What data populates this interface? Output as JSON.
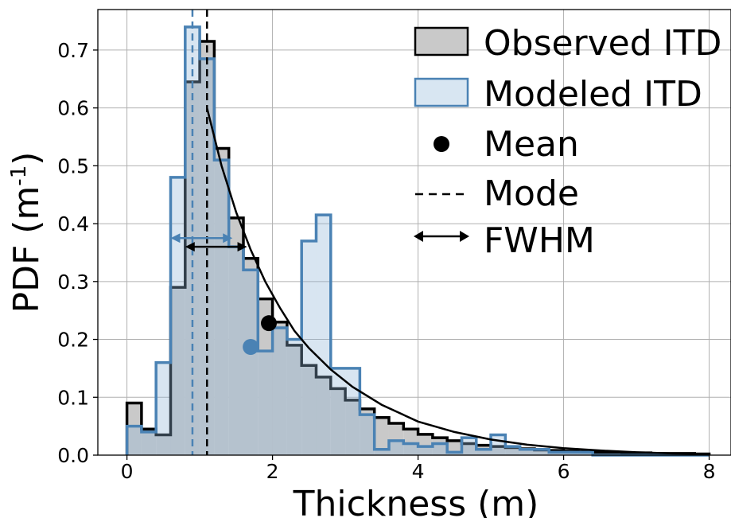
{
  "chart_data": {
    "type": "bar",
    "xlabel": "Thickness (m)",
    "ylabel_main": "PDF (m",
    "ylabel_sup": "-1",
    "ylabel_close": ")",
    "xlim": [
      -0.4,
      8.3
    ],
    "ylim": [
      0,
      0.77
    ],
    "xticks": [
      0,
      2,
      4,
      6,
      8
    ],
    "yticks": [
      0.0,
      0.1,
      0.2,
      0.3,
      0.4,
      0.5,
      0.6,
      0.7
    ],
    "xtick_labels": [
      "0",
      "2",
      "4",
      "6",
      "8"
    ],
    "ytick_labels": [
      "0.0",
      "0.1",
      "0.2",
      "0.3",
      "0.4",
      "0.5",
      "0.6",
      "0.7"
    ],
    "grid": true,
    "legend_position": "top-right",
    "bin_edges": [
      0,
      0.2,
      0.4,
      0.6,
      0.8,
      1.0,
      1.2,
      1.4,
      1.6,
      1.8,
      2.0,
      2.2,
      2.4,
      2.6,
      2.8,
      3.0,
      3.2,
      3.4,
      3.6,
      3.8,
      4.0,
      4.2,
      4.4,
      4.6,
      4.8,
      5.0,
      5.2,
      5.4,
      5.6,
      5.8,
      6.0,
      6.2,
      6.4,
      6.6,
      6.8,
      7.0,
      7.2,
      7.4,
      7.6,
      7.8,
      8.0
    ],
    "series": [
      {
        "name": "Observed ITD",
        "values": [
          0.09,
          0.045,
          0.035,
          0.29,
          0.645,
          0.715,
          0.53,
          0.41,
          0.34,
          0.27,
          0.23,
          0.19,
          0.155,
          0.135,
          0.115,
          0.095,
          0.08,
          0.065,
          0.055,
          0.045,
          0.036,
          0.03,
          0.025,
          0.02,
          0.017,
          0.015,
          0.013,
          0.011,
          0.009,
          0.008,
          0.007,
          0.006,
          0.005,
          0.005,
          0.004,
          0.004,
          0.003,
          0.003,
          0.003,
          0.002
        ],
        "fill": "#c9c9c9",
        "stroke": "#000000"
      },
      {
        "name": "Modeled ITD",
        "values": [
          0.05,
          0.04,
          0.16,
          0.48,
          0.74,
          0.685,
          0.51,
          0.36,
          0.32,
          0.18,
          0.22,
          0.2,
          0.37,
          0.415,
          0.15,
          0.15,
          0.07,
          0.01,
          0.025,
          0.02,
          0.015,
          0.02,
          0.005,
          0.03,
          0.01,
          0.035,
          0.015,
          0.01,
          0.01,
          0.005,
          0.005,
          0.005,
          0.0,
          0.0,
          0.0,
          0.0,
          0.0,
          0.0,
          0.0,
          0.0
        ],
        "fill": "#8fb4d6",
        "stroke": "#4a82b4"
      },
      {
        "name": "Mean",
        "points": [
          {
            "x": 1.95,
            "y": 0.228,
            "color": "#000000"
          },
          {
            "x": 1.7,
            "y": 0.187,
            "color": "#4a82b4"
          }
        ]
      },
      {
        "name": "Mode",
        "lines": [
          {
            "x": 1.1,
            "color": "#000000"
          },
          {
            "x": 0.9,
            "color": "#4a82b4"
          }
        ]
      },
      {
        "name": "FWHM",
        "arrows": [
          {
            "x1": 0.8,
            "x2": 1.65,
            "y": 0.36,
            "color": "#000000"
          },
          {
            "x1": 0.6,
            "x2": 1.45,
            "y": 0.375,
            "color": "#4a82b4"
          }
        ]
      }
    ],
    "fit_curve": {
      "x": [
        1.1,
        1.3,
        1.5,
        1.7,
        1.9,
        2.1,
        2.3,
        2.5,
        2.8,
        3.1,
        3.5,
        4.0,
        4.5,
        5.0,
        5.5,
        6.0,
        6.5,
        7.0,
        7.5,
        8.0
      ],
      "y": [
        0.6,
        0.5,
        0.42,
        0.355,
        0.3,
        0.255,
        0.215,
        0.185,
        0.148,
        0.118,
        0.087,
        0.058,
        0.04,
        0.027,
        0.018,
        0.012,
        0.008,
        0.005,
        0.003,
        0.002
      ],
      "color": "#000000"
    }
  },
  "legend": {
    "observed": "Observed ITD",
    "modeled": "Modeled ITD",
    "mean": "Mean",
    "mode": "Mode",
    "fwhm": "FWHM"
  }
}
